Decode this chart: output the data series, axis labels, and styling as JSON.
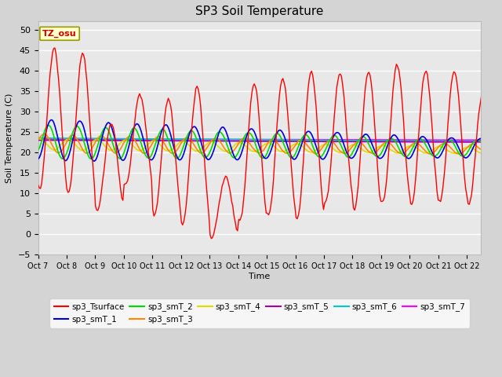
{
  "title": "SP3 Soil Temperature",
  "xlabel": "Time",
  "ylabel": "Soil Temperature (C)",
  "ylim": [
    -5,
    52
  ],
  "yticks": [
    -5,
    0,
    5,
    10,
    15,
    20,
    25,
    30,
    35,
    40,
    45,
    50
  ],
  "tz_label": "TZ_osu",
  "tz_box_color": "#ffffcc",
  "tz_box_edge": "#999900",
  "fig_bg_color": "#d4d4d4",
  "plot_bg_color": "#e8e8e8",
  "series_colors": {
    "sp3_Tsurface": "#ff0000",
    "sp3_smT_1": "#0000dd",
    "sp3_smT_2": "#00dd00",
    "sp3_smT_3": "#ff8800",
    "sp3_smT_4": "#dddd00",
    "sp3_smT_5": "#aa00aa",
    "sp3_smT_6": "#00cccc",
    "sp3_smT_7": "#ff00ff"
  },
  "x_tick_labels": [
    "Oct 7",
    "Oct 8",
    "Oct 9",
    "Oct 10",
    "Oct 11",
    "Oct 12",
    "Oct 13",
    "Oct 14",
    "Oct 15",
    "Oct 16",
    "Oct 17",
    "Oct 18",
    "Oct 19",
    "Oct 20",
    "Oct 21",
    "Oct 22"
  ],
  "legend_labels": [
    "sp3_Tsurface",
    "sp3_smT_1",
    "sp3_smT_2",
    "sp3_smT_3",
    "sp3_smT_4",
    "sp3_smT_5",
    "sp3_smT_6",
    "sp3_smT_7"
  ]
}
